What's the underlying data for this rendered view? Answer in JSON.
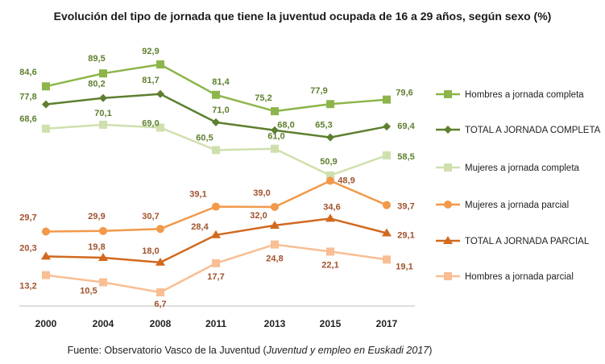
{
  "chart_data": {
    "type": "line",
    "title": "Evolución del tipo de jornada que tiene la juventud ocupada de 16 a 29 años, según sexo (%)",
    "categories": [
      "2000",
      "2004",
      "2008",
      "2011",
      "2013",
      "2015",
      "2017"
    ],
    "ylim": [
      0,
      100
    ],
    "grid": false,
    "legend_position": "right",
    "series": [
      {
        "name": "Hombres a jornada completa",
        "color": "#8DB54B",
        "marker": "square",
        "values": [
          84.6,
          89.5,
          92.9,
          81.4,
          75.2,
          77.9,
          79.6
        ],
        "labels": [
          "84,6",
          "89,5",
          "92,9",
          "81,4",
          "75,2",
          "77,9",
          "79,6"
        ]
      },
      {
        "name": "TOTAL A JORNADA COMPLETA",
        "color": "#5E7F2F",
        "marker": "diamond",
        "values": [
          77.8,
          80.2,
          81.7,
          71.0,
          68.0,
          65.3,
          69.4
        ],
        "labels": [
          "77,8",
          "80,2",
          "81,7",
          "71,0",
          "68,0",
          "65,3",
          "69,4"
        ]
      },
      {
        "name": "Mujeres a jornada completa",
        "color": "#CFE0AE",
        "marker": "square",
        "values": [
          68.6,
          70.1,
          69.0,
          60.5,
          61.0,
          50.9,
          58.5
        ],
        "labels": [
          "68,6",
          "70,1",
          "69,0",
          "60,5",
          "61,0",
          "50,9",
          "58,5"
        ]
      },
      {
        "name": "Mujeres a jornada parcial",
        "color": "#F2994A",
        "marker": "circle",
        "values": [
          29.7,
          29.9,
          30.7,
          39.1,
          39.0,
          48.9,
          39.7
        ],
        "labels": [
          "29,7",
          "29,9",
          "30,7",
          "39,1",
          "39,0",
          "48,9",
          "39,7"
        ]
      },
      {
        "name": "TOTAL A JORNADA PARCIAL",
        "color": "#D2691E",
        "marker": "triangle",
        "values": [
          20.3,
          19.8,
          18.0,
          28.4,
          32.0,
          34.6,
          29.1
        ],
        "labels": [
          "20,3",
          "19,8",
          "18,0",
          "28,4",
          "32,0",
          "34,6",
          "29,1"
        ]
      },
      {
        "name": "Hombres a jornada parcial",
        "color": "#F9BE93",
        "marker": "square",
        "values": [
          13.2,
          10.5,
          6.7,
          17.7,
          24.8,
          22.1,
          19.1
        ],
        "labels": [
          "13,2",
          "10,5",
          "6,7",
          "17,7",
          "24,8",
          "22,1",
          "19,1"
        ]
      }
    ],
    "label_colors": {
      "green": "#5E7F2F",
      "orange": "#A0522D"
    }
  },
  "source": {
    "prefix": "Fuente: Observatorio Vasco de la Juventud (",
    "italic": "Juventud y empleo en Euskadi 2017",
    "suffix": ")"
  }
}
